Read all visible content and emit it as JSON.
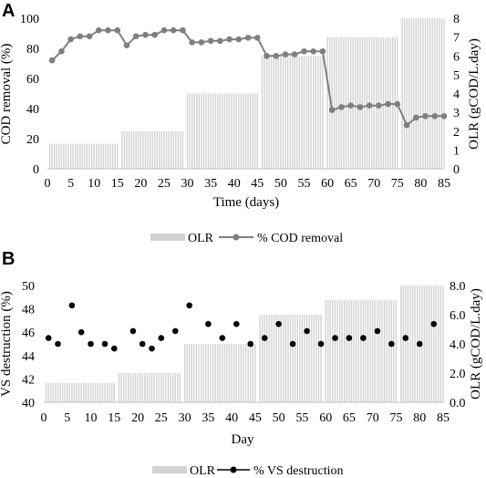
{
  "chart_data": [
    {
      "panel_label": "A",
      "type": "bar+line",
      "xlabel": "Time (days)",
      "ylabel_left": "COD removal (%)",
      "ylabel_right": "OLR (gCOD/L.day)",
      "xlim": [
        0,
        85
      ],
      "x_ticks": [
        "0",
        "5",
        "10",
        "15",
        "20",
        "25",
        "30",
        "35",
        "40",
        "45",
        "50",
        "55",
        "60",
        "65",
        "70",
        "75",
        "80",
        "85"
      ],
      "ylim_left": [
        0,
        100
      ],
      "y_ticks_left": [
        "0",
        "20",
        "40",
        "60",
        "80",
        "100"
      ],
      "ylim_right": [
        0,
        8
      ],
      "y_ticks_right": [
        "0",
        "1",
        "2",
        "3",
        "4",
        "5",
        "6",
        "7",
        "8"
      ],
      "legend_position": "bottom-center",
      "colors": {
        "bars": "#d3d3d3",
        "line": "#7f7f7f",
        "axis": "#bfbfbf"
      },
      "series": [
        {
          "name": "OLR",
          "kind": "bar",
          "axis": "right",
          "steps": [
            {
              "from": 0,
              "to": 15,
              "value": 1.33
            },
            {
              "from": 16,
              "to": 29,
              "value": 2.0
            },
            {
              "from": 30,
              "to": 45,
              "value": 4.0
            },
            {
              "from": 46,
              "to": 59,
              "value": 6.0
            },
            {
              "from": 60,
              "to": 75,
              "value": 7.0
            },
            {
              "from": 76,
              "to": 85,
              "value": 8.0
            }
          ]
        },
        {
          "name": "% COD removal",
          "kind": "line",
          "axis": "left",
          "x": [
            1,
            3,
            5,
            7,
            9,
            11,
            13,
            15,
            17,
            19,
            21,
            23,
            25,
            27,
            29,
            31,
            33,
            35,
            37,
            39,
            41,
            43,
            45,
            47,
            49,
            51,
            53,
            55,
            57,
            59,
            61,
            63,
            65,
            67,
            69,
            71,
            73,
            75,
            77,
            79,
            81,
            83,
            85
          ],
          "y": [
            72,
            78,
            86,
            88,
            88,
            92,
            92,
            92,
            82,
            88,
            89,
            89,
            92,
            92,
            92,
            84,
            84,
            85,
            85,
            86,
            86,
            87,
            87,
            75,
            75,
            76,
            76,
            78,
            78,
            78,
            39,
            41,
            42,
            41,
            42,
            42,
            43,
            43,
            29,
            34,
            35,
            35,
            35
          ]
        }
      ]
    },
    {
      "panel_label": "B",
      "type": "bar+scatter",
      "xlabel": "Day",
      "ylabel_left": "VS destruction (%)",
      "ylabel_right": "OLR (gCOD/L.day)",
      "xlim": [
        0,
        85
      ],
      "x_ticks": [
        "0",
        "5",
        "10",
        "15",
        "20",
        "25",
        "30",
        "35",
        "40",
        "45",
        "50",
        "55",
        "60",
        "65",
        "70",
        "75",
        "80",
        "85"
      ],
      "ylim_left": [
        40,
        50
      ],
      "y_ticks_left": [
        "40",
        "42",
        "44",
        "46",
        "48",
        "50"
      ],
      "ylim_right": [
        0,
        8
      ],
      "y_ticks_right": [
        "0.0",
        "2.0",
        "4.0",
        "6.0",
        "8.0"
      ],
      "legend_position": "bottom-center",
      "colors": {
        "bars": "#d3d3d3",
        "points": "#000000",
        "axis": "#bfbfbf"
      },
      "series": [
        {
          "name": "OLR",
          "kind": "bar",
          "axis": "right",
          "steps": [
            {
              "from": 0,
              "to": 15,
              "value": 1.33
            },
            {
              "from": 16,
              "to": 29,
              "value": 2.0
            },
            {
              "from": 30,
              "to": 45,
              "value": 4.0
            },
            {
              "from": 46,
              "to": 59,
              "value": 6.0
            },
            {
              "from": 60,
              "to": 75,
              "value": 7.0
            },
            {
              "from": 76,
              "to": 85,
              "value": 8.0
            }
          ]
        },
        {
          "name": "% VS destruction",
          "kind": "scatter",
          "axis": "left",
          "x": [
            1,
            3,
            6,
            8,
            10,
            13,
            15,
            19,
            21,
            23,
            25,
            28,
            31,
            35,
            38,
            41,
            44,
            47,
            50,
            53,
            56,
            59,
            62,
            65,
            68,
            71,
            74,
            77,
            80,
            83
          ],
          "y": [
            45.5,
            45.0,
            48.3,
            46.0,
            45.0,
            45.0,
            44.6,
            46.1,
            45.0,
            44.6,
            45.5,
            46.1,
            48.3,
            46.7,
            45.5,
            46.7,
            45.0,
            45.5,
            46.7,
            45.0,
            46.1,
            45.0,
            45.5,
            45.5,
            45.5,
            46.1,
            45.0,
            45.5,
            45.0,
            46.7
          ]
        }
      ]
    }
  ]
}
